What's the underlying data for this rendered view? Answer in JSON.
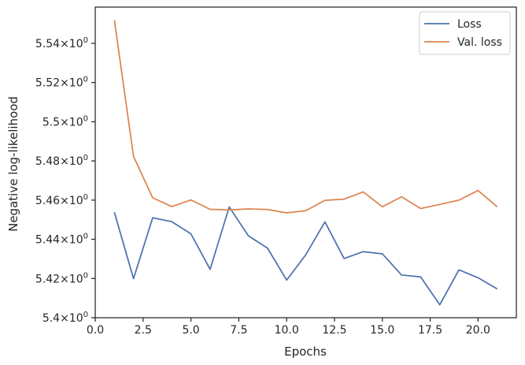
{
  "chart_data": {
    "type": "line",
    "xlabel": "Epochs",
    "ylabel": "Negative log-likelihood",
    "xlim": [
      0,
      22.0
    ],
    "ylim": [
      5.4,
      5.5585
    ],
    "x_ticks": [
      {
        "value": 0,
        "label": "0.0"
      },
      {
        "value": 2.5,
        "label": "2.5"
      },
      {
        "value": 5,
        "label": "5.0"
      },
      {
        "value": 7.5,
        "label": "7.5"
      },
      {
        "value": 10,
        "label": "10.0"
      },
      {
        "value": 12.5,
        "label": "12.5"
      },
      {
        "value": 15,
        "label": "15.0"
      },
      {
        "value": 17.5,
        "label": "17.5"
      },
      {
        "value": 20,
        "label": "20.0"
      }
    ],
    "y_ticks": [
      {
        "value": 5.4,
        "base": "5.4",
        "sup": "0"
      },
      {
        "value": 5.42,
        "base": "5.42",
        "sup": "0"
      },
      {
        "value": 5.44,
        "base": "5.44",
        "sup": "0"
      },
      {
        "value": 5.46,
        "base": "5.46",
        "sup": "0"
      },
      {
        "value": 5.48,
        "base": "5.48",
        "sup": "0"
      },
      {
        "value": 5.5,
        "base": "5.5",
        "sup": "0"
      },
      {
        "value": 5.52,
        "base": "5.52",
        "sup": "0"
      },
      {
        "value": 5.54,
        "base": "5.54",
        "sup": "0"
      }
    ],
    "y_tick_mult": "×10",
    "grid": false,
    "legend_position": "top-right",
    "x": [
      1,
      2,
      3,
      4,
      5,
      6,
      7,
      8,
      9,
      10,
      11,
      12,
      13,
      14,
      15,
      16,
      17,
      18,
      19,
      20,
      21
    ],
    "series": [
      {
        "name": "Loss",
        "color": "#4c72b0",
        "values": [
          5.4538,
          5.4199,
          5.451,
          5.449,
          5.4428,
          5.4247,
          5.4565,
          5.4418,
          5.4355,
          5.4192,
          5.4321,
          5.4489,
          5.4302,
          5.4337,
          5.4326,
          5.4218,
          5.4208,
          5.4066,
          5.4244,
          5.4204,
          5.4147
        ]
      },
      {
        "name": "Val. loss",
        "color": "#dd8452",
        "values": [
          5.5518,
          5.4823,
          5.4612,
          5.4567,
          5.4601,
          5.4553,
          5.455,
          5.4555,
          5.4552,
          5.4535,
          5.4546,
          5.4599,
          5.4605,
          5.4642,
          5.4566,
          5.4617,
          5.4557,
          5.4578,
          5.46,
          5.4649,
          5.4566
        ]
      }
    ]
  }
}
